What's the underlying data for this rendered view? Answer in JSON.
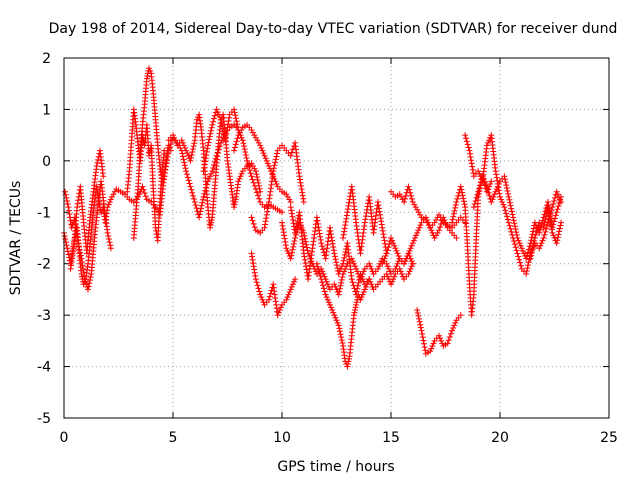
{
  "chart_data": {
    "type": "scatter",
    "title": "Day 198 of 2014, Sidereal Day-to-day VTEC variation (SDTVAR) for receiver dund",
    "xlabel": "GPS time / hours",
    "ylabel": "SDTVAR / TECUs",
    "xlim": [
      0,
      25
    ],
    "ylim": [
      -5,
      2
    ],
    "xticks": [
      0,
      5,
      10,
      15,
      20,
      25
    ],
    "yticks": [
      -5,
      -4,
      -3,
      -2,
      -1,
      0,
      1,
      2
    ],
    "grid": true,
    "marker": "+",
    "color": "#ff0000",
    "series": [
      {
        "name": "sdtvar",
        "traces": [
          {
            "x": [
              0.0,
              0.15,
              0.3,
              0.45,
              0.6,
              0.7,
              0.8,
              0.9,
              1.0,
              1.1,
              1.2,
              1.3,
              1.4,
              1.5,
              1.6,
              1.7,
              1.8,
              1.9,
              2.0,
              2.2,
              2.4,
              2.6,
              2.8,
              3.0,
              3.2,
              3.4,
              3.6,
              3.8,
              4.0,
              4.2,
              4.4,
              4.6,
              4.8,
              5.0,
              5.2,
              5.4,
              5.6,
              5.8,
              6.0,
              6.2,
              6.4,
              6.6,
              6.8,
              7.0,
              7.2,
              7.4,
              7.6,
              7.8,
              8.0,
              8.2,
              8.4,
              8.6,
              8.8,
              9.0,
              9.2,
              9.4,
              9.6,
              9.8,
              10.0
            ],
            "y": [
              -1.4,
              -1.7,
              -2.0,
              -1.6,
              -1.3,
              -1.8,
              -2.2,
              -2.4,
              -2.3,
              -2.0,
              -1.6,
              -1.2,
              -0.8,
              -0.5,
              -0.8,
              -1.0,
              -0.9,
              -1.2,
              -0.9,
              -0.7,
              -0.55,
              -0.6,
              -0.65,
              -0.75,
              -0.8,
              -0.7,
              -0.5,
              -0.75,
              -0.8,
              -0.9,
              -1.05,
              -0.3,
              0.2,
              0.45,
              0.35,
              0.2,
              -0.2,
              -0.5,
              -0.8,
              -1.1,
              -0.7,
              -0.4,
              -0.2,
              0.1,
              0.35,
              0.55,
              0.65,
              0.7,
              0.6,
              0.4,
              0.0,
              -0.3,
              -0.55,
              -0.8,
              -0.9,
              -0.85,
              -0.9,
              -0.95,
              -1.0
            ]
          },
          {
            "x": [
              0.05,
              0.2,
              0.35,
              0.5,
              0.65,
              0.8,
              0.95,
              1.1,
              1.25,
              1.4,
              1.55,
              1.7,
              1.85,
              2.0,
              2.15
            ],
            "y": [
              -0.6,
              -0.9,
              -1.3,
              -1.1,
              -1.6,
              -1.9,
              -2.3,
              -2.5,
              -2.2,
              -1.5,
              -0.9,
              -0.4,
              -0.9,
              -1.4,
              -1.7
            ]
          },
          {
            "x": [
              0.3,
              0.45,
              0.6,
              0.75,
              0.9,
              1.05,
              1.2,
              1.35,
              1.5,
              1.65,
              1.8
            ],
            "y": [
              -2.1,
              -1.7,
              -0.9,
              -0.5,
              -1.2,
              -1.8,
              -1.1,
              -0.6,
              -0.1,
              0.2,
              -0.3
            ]
          },
          {
            "x": [
              3.2,
              3.3,
              3.4,
              3.5,
              3.6,
              3.7,
              3.8,
              3.9,
              4.0,
              4.1,
              4.2,
              4.3,
              4.4,
              4.5,
              4.6,
              4.7,
              4.8,
              4.9
            ],
            "y": [
              -1.5,
              -1.0,
              -0.5,
              0.2,
              0.7,
              1.1,
              1.6,
              1.8,
              1.7,
              1.3,
              0.8,
              0.3,
              -0.1,
              -0.4,
              -0.3,
              0.1,
              0.3,
              0.2
            ]
          },
          {
            "x": [
              2.9,
              3.0,
              3.1,
              3.2,
              3.3,
              3.4,
              3.5,
              3.6,
              3.7,
              3.8,
              3.9,
              4.0,
              4.1,
              4.2,
              4.3,
              4.4,
              4.5,
              4.6
            ],
            "y": [
              -0.6,
              -0.2,
              0.4,
              1.0,
              0.7,
              0.3,
              0.0,
              0.5,
              0.3,
              0.7,
              0.1,
              0.3,
              -0.6,
              -1.3,
              -1.55,
              -0.8,
              -0.2,
              0.2
            ]
          },
          {
            "x": [
              4.8,
              5.0,
              5.2,
              5.4,
              5.6,
              5.8,
              6.0,
              6.1,
              6.2,
              6.3,
              6.4,
              6.5,
              6.6,
              6.7,
              6.8,
              6.9,
              7.0,
              7.1,
              7.2,
              7.3,
              7.4,
              7.5,
              7.6,
              7.7,
              7.8,
              7.9,
              8.0,
              8.2,
              8.4,
              8.6,
              8.8,
              9.0
            ],
            "y": [
              0.4,
              0.5,
              0.3,
              0.4,
              0.2,
              0.0,
              0.4,
              0.8,
              0.9,
              0.6,
              0.2,
              -0.4,
              -0.9,
              -1.3,
              -1.1,
              -0.6,
              -0.1,
              0.4,
              0.8,
              0.9,
              0.5,
              0.0,
              -0.3,
              -0.6,
              -0.9,
              -0.7,
              -0.4,
              -0.2,
              -0.1,
              -0.05,
              -0.2,
              -0.6
            ]
          },
          {
            "x": [
              6.4,
              6.6,
              6.8,
              7.0,
              7.2,
              7.4,
              7.6,
              7.8,
              8.0
            ],
            "y": [
              -0.2,
              0.3,
              0.7,
              1.0,
              0.8,
              0.4,
              0.9,
              1.0,
              0.6
            ]
          },
          {
            "x": [
              7.8,
              8.0,
              8.2,
              8.4,
              8.6,
              8.8,
              9.0,
              9.2,
              9.4,
              9.6,
              9.8,
              10.0,
              10.2,
              10.4
            ],
            "y": [
              0.2,
              0.5,
              0.65,
              0.7,
              0.6,
              0.45,
              0.3,
              0.1,
              -0.1,
              -0.3,
              -0.5,
              -0.6,
              -0.65,
              -0.8
            ]
          },
          {
            "x": [
              8.6,
              8.8,
              9.0,
              9.2,
              9.4,
              9.6,
              9.8,
              10.0,
              10.2,
              10.4,
              10.6,
              10.8,
              11.0
            ],
            "y": [
              -1.1,
              -1.35,
              -1.4,
              -1.3,
              -0.8,
              -0.2,
              0.2,
              0.3,
              0.2,
              0.1,
              0.35,
              -0.3,
              -0.8
            ]
          },
          {
            "x": [
              8.6,
              8.8,
              9.0,
              9.2,
              9.4,
              9.6,
              9.8,
              10.0,
              10.2,
              10.4,
              10.6
            ],
            "y": [
              -1.8,
              -2.3,
              -2.6,
              -2.8,
              -2.7,
              -2.4,
              -3.0,
              -2.8,
              -2.7,
              -2.5,
              -2.3
            ]
          },
          {
            "x": [
              10.0,
              10.2,
              10.4,
              10.6,
              10.8,
              11.0,
              11.2,
              11.4,
              11.6,
              11.8,
              12.0,
              12.2,
              12.4,
              12.6,
              12.8,
              13.0,
              13.2,
              13.4,
              13.6,
              13.8,
              14.0,
              14.2,
              14.4,
              14.6,
              14.8,
              15.0,
              15.2,
              15.4,
              15.6,
              15.8,
              16.0
            ],
            "y": [
              -1.2,
              -1.7,
              -1.9,
              -1.5,
              -1.2,
              -1.4,
              -1.8,
              -2.0,
              -2.2,
              -2.1,
              -2.3,
              -2.5,
              -2.4,
              -2.6,
              -2.2,
              -2.0,
              -1.9,
              -2.1,
              -2.3,
              -2.1,
              -2.0,
              -2.2,
              -2.1,
              -1.9,
              -2.0,
              -2.2,
              -2.1,
              -1.9,
              -2.0,
              -1.8,
              -2.0
            ]
          },
          {
            "x": [
              10.4,
              10.6,
              10.8,
              11.0,
              11.2,
              11.4,
              11.6,
              11.8,
              12.0,
              12.2,
              12.4,
              12.6,
              12.8,
              13.0,
              13.2,
              13.4,
              13.6,
              13.8,
              14.0,
              14.2,
              14.4,
              14.6,
              14.8,
              15.0,
              15.2,
              15.4,
              15.6,
              15.8,
              16.0
            ],
            "y": [
              -0.9,
              -1.4,
              -1.0,
              -1.8,
              -2.3,
              -1.7,
              -1.1,
              -1.6,
              -1.9,
              -1.3,
              -1.8,
              -2.2,
              -2.0,
              -1.6,
              -2.3,
              -2.6,
              -2.2,
              -2.4,
              -2.3,
              -2.5,
              -2.4,
              -2.3,
              -2.2,
              -2.4,
              -2.2,
              -2.1,
              -2.3,
              -2.2,
              -2.0
            ]
          },
          {
            "x": [
              11.6,
              11.8,
              12.0,
              12.2,
              12.4,
              12.6,
              12.8,
              12.9,
              13.0,
              13.1,
              13.2,
              13.3,
              13.4,
              13.5,
              13.6,
              13.8,
              14.0
            ],
            "y": [
              -2.0,
              -2.3,
              -2.6,
              -2.8,
              -3.0,
              -3.2,
              -3.6,
              -3.9,
              -4.0,
              -3.8,
              -3.4,
              -3.0,
              -2.8,
              -2.6,
              -2.7,
              -2.5,
              -2.3
            ]
          },
          {
            "x": [
              12.8,
              13.0,
              13.2,
              13.4,
              13.6,
              13.8,
              14.0,
              14.2,
              14.4,
              14.6,
              14.8
            ],
            "y": [
              -1.5,
              -1.0,
              -0.5,
              -1.2,
              -1.8,
              -1.2,
              -0.7,
              -1.4,
              -0.8,
              -1.3,
              -1.8
            ]
          },
          {
            "x": [
              14.6,
              14.8,
              15.0,
              15.2,
              15.4,
              15.6,
              15.8,
              16.0,
              16.2,
              16.4,
              16.6,
              16.8,
              17.0,
              17.2,
              17.4,
              17.6,
              17.8,
              18.0
            ],
            "y": [
              -2.0,
              -1.8,
              -1.5,
              -1.7,
              -1.9,
              -2.0,
              -1.8,
              -1.6,
              -1.4,
              -1.2,
              -1.1,
              -1.3,
              -1.5,
              -1.35,
              -1.1,
              -1.3,
              -1.4,
              -1.5
            ]
          },
          {
            "x": [
              15.0,
              15.2,
              15.4,
              15.6,
              15.8,
              16.0,
              16.2,
              16.4,
              16.6,
              16.8,
              17.0,
              17.2,
              17.4,
              17.6,
              17.8,
              18.0,
              18.2,
              18.4
            ],
            "y": [
              -0.6,
              -0.7,
              -0.65,
              -0.8,
              -0.5,
              -0.8,
              -0.95,
              -1.1,
              -1.15,
              -1.3,
              -1.2,
              -1.05,
              -1.2,
              -1.25,
              -1.3,
              -1.2,
              -1.1,
              -1.2
            ]
          },
          {
            "x": [
              16.2,
              16.4,
              16.6,
              16.8,
              17.0,
              17.2,
              17.4,
              17.6,
              17.8,
              18.0,
              18.2
            ],
            "y": [
              -2.9,
              -3.3,
              -3.75,
              -3.7,
              -3.5,
              -3.4,
              -3.6,
              -3.55,
              -3.3,
              -3.1,
              -3.0
            ]
          },
          {
            "x": [
              17.8,
              18.0,
              18.2,
              18.4,
              18.5,
              18.6,
              18.7,
              18.8,
              18.9,
              19.0,
              19.2,
              19.4,
              19.6
            ],
            "y": [
              -1.2,
              -0.8,
              -0.5,
              -0.9,
              -1.6,
              -2.4,
              -3.0,
              -2.6,
              -1.6,
              -0.7,
              -0.3,
              -0.6,
              -0.4
            ]
          },
          {
            "x": [
              18.4,
              18.6,
              18.8,
              19.0,
              19.2,
              19.4,
              19.6,
              19.8,
              20.0,
              20.2,
              20.4,
              20.6,
              20.8,
              21.0,
              21.2,
              21.4,
              21.6,
              21.8,
              22.0,
              22.2,
              22.4,
              22.6,
              22.8
            ],
            "y": [
              0.5,
              0.2,
              -0.3,
              -0.2,
              -0.4,
              0.3,
              0.5,
              -0.2,
              -0.7,
              -0.9,
              -1.2,
              -1.5,
              -1.8,
              -2.1,
              -2.2,
              -1.8,
              -1.6,
              -1.7,
              -1.5,
              -1.2,
              -0.9,
              -0.6,
              -0.8
            ]
          },
          {
            "x": [
              18.8,
              19.0,
              19.2,
              19.4,
              19.6,
              19.8,
              20.0,
              20.2,
              20.4,
              20.6,
              20.8,
              21.0,
              21.2,
              21.4,
              21.6,
              21.8,
              22.0,
              22.2,
              22.4,
              22.6,
              22.8
            ],
            "y": [
              -0.9,
              -0.6,
              -0.3,
              -0.5,
              -0.8,
              -0.6,
              -0.4,
              -0.3,
              -0.7,
              -1.1,
              -1.5,
              -1.7,
              -1.9,
              -1.6,
              -1.2,
              -1.4,
              -1.1,
              -0.8,
              -1.3,
              -1.0,
              -0.7
            ]
          },
          {
            "x": [
              21.4,
              21.6,
              21.8,
              22.0,
              22.2,
              22.4,
              22.6,
              22.8
            ],
            "y": [
              -1.9,
              -1.5,
              -1.2,
              -1.3,
              -0.9,
              -1.4,
              -1.6,
              -1.2
            ]
          }
        ]
      }
    ]
  }
}
